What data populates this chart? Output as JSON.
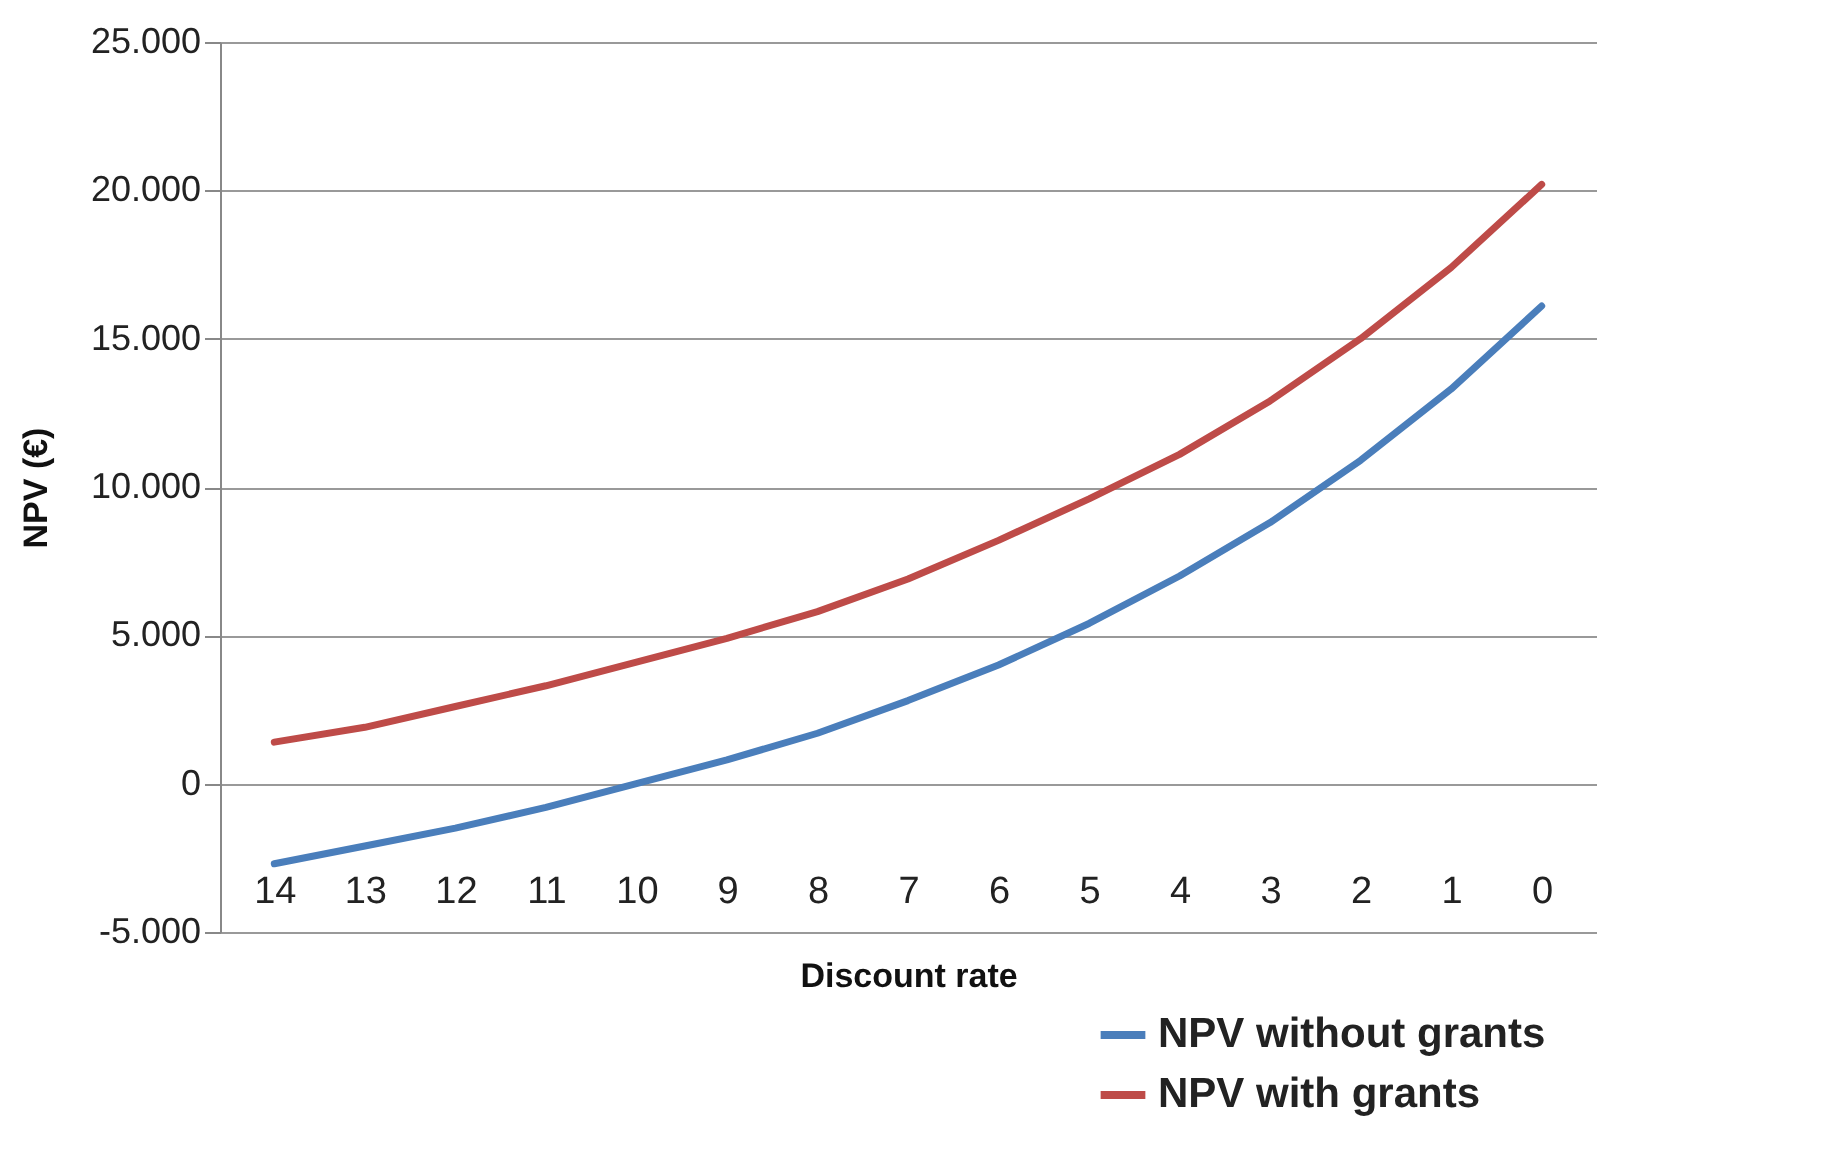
{
  "chart_data": {
    "type": "line",
    "xlabel": "Discount rate",
    "ylabel": "NPV (€)",
    "categories": [
      "14",
      "13",
      "12",
      "11",
      "10",
      "9",
      "8",
      "7",
      "6",
      "5",
      "4",
      "3",
      "2",
      "1",
      "0"
    ],
    "series": [
      {
        "name": "NPV without grants",
        "color": "#4a7ebb",
        "values": [
          -2700,
          -2100,
          -1500,
          -800,
          0,
          800,
          1700,
          2800,
          4000,
          5400,
          7000,
          8800,
          10900,
          13300,
          16100
        ]
      },
      {
        "name": "NPV with grants",
        "color": "#be4b48",
        "values": [
          1400,
          1900,
          2600,
          3300,
          4100,
          4900,
          5800,
          6900,
          8200,
          9600,
          11100,
          12900,
          15000,
          17400,
          20200
        ]
      }
    ],
    "ylim": [
      -5000,
      25000
    ],
    "yticks": [
      {
        "value": -5000,
        "label": "-5.000"
      },
      {
        "value": 0,
        "label": "0"
      },
      {
        "value": 5000,
        "label": "5.000"
      },
      {
        "value": 10000,
        "label": "10.000"
      },
      {
        "value": 15000,
        "label": "15.000"
      },
      {
        "value": 20000,
        "label": "20.000"
      },
      {
        "value": 25000,
        "label": "25.000"
      }
    ],
    "grid": "y",
    "legend": "bottom right",
    "marker": "none",
    "line_style": "solid"
  }
}
